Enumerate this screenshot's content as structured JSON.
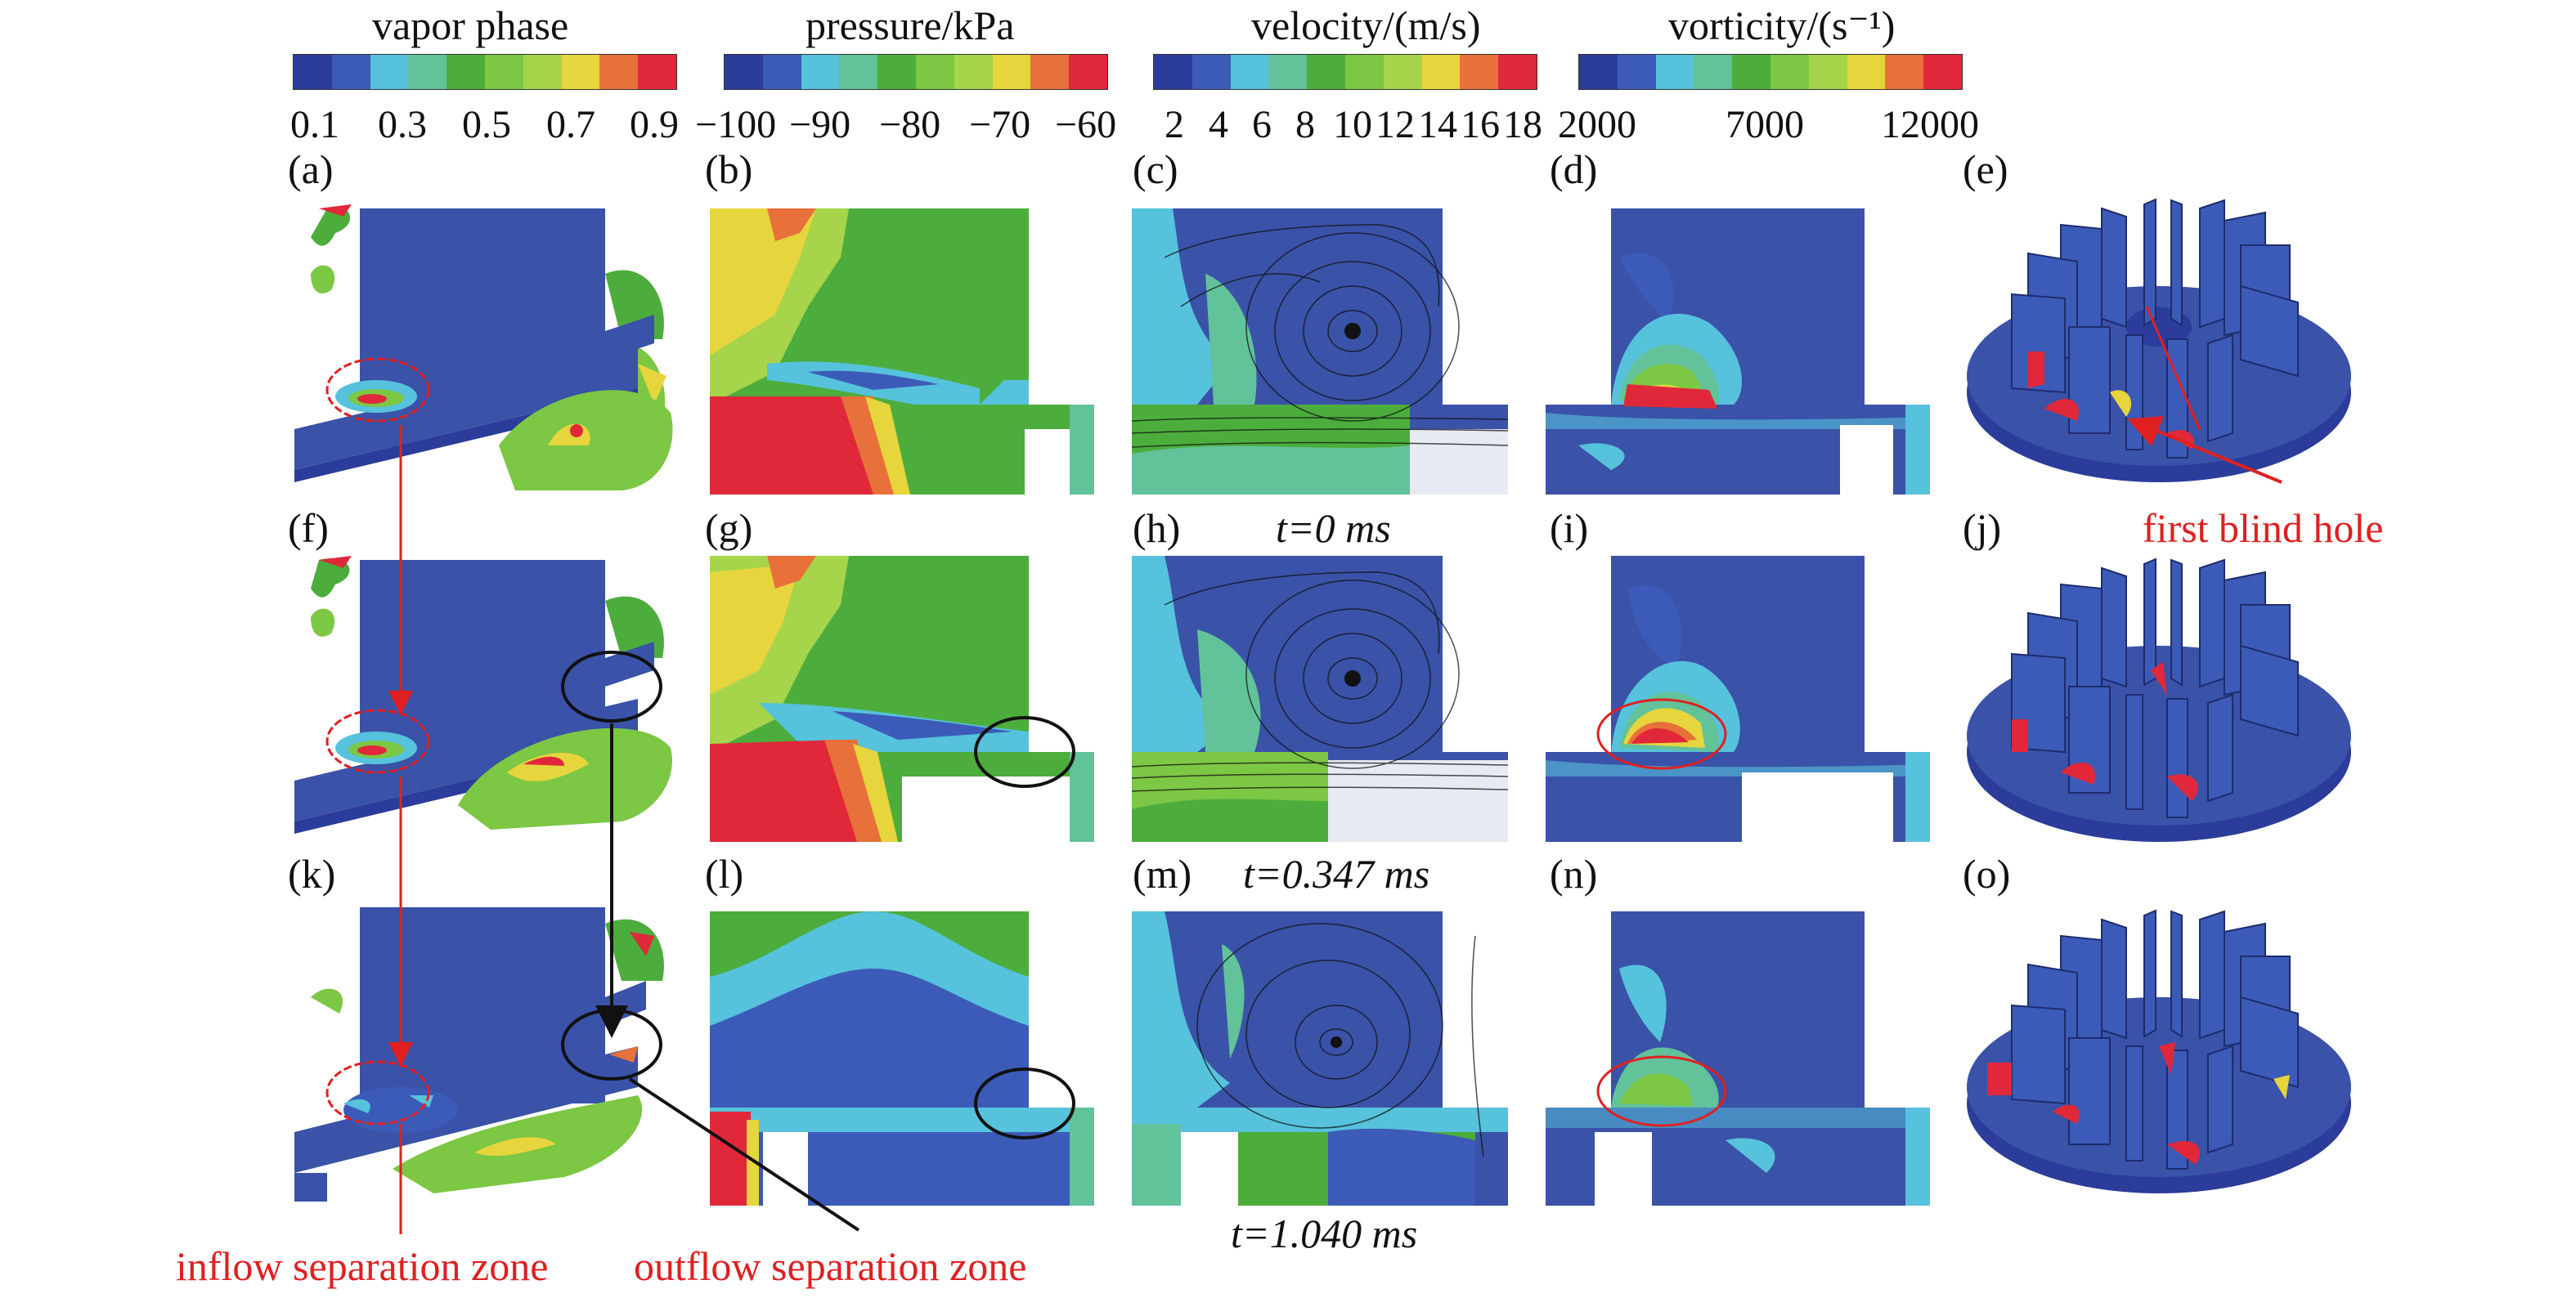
{
  "colors": {
    "scale": [
      "#2b3c9a",
      "#3c5bb8",
      "#56c2dc",
      "#62c29a",
      "#4dad3c",
      "#7cc743",
      "#a6d44a",
      "#e6d53c",
      "#e8703a",
      "#e0283a"
    ],
    "blue": "#3a52a8",
    "red_annotation": "#e02020"
  },
  "colorbars": [
    {
      "title": "vapor phase",
      "ticks": [
        "0.1",
        "0.3",
        "0.5",
        "0.7",
        "0.9"
      ]
    },
    {
      "title": "pressure/kPa",
      "ticks": [
        "−100",
        "−90",
        "−80",
        "−70",
        "−60"
      ]
    },
    {
      "title": "velocity/(m/s)",
      "ticks": [
        "2",
        "4",
        "6",
        "8",
        "10",
        "12",
        "14",
        "16",
        "18"
      ]
    },
    {
      "title": "vorticity/(s⁻¹)",
      "ticks": [
        "2000",
        "7000",
        "12000"
      ]
    }
  ],
  "panel_labels": [
    "(a)",
    "(b)",
    "(c)",
    "(d)",
    "(e)",
    "(f)",
    "(g)",
    "(h)",
    "(i)",
    "(j)",
    "(k)",
    "(l)",
    "(m)",
    "(n)",
    "(o)"
  ],
  "times": [
    "t=0 ms",
    "t=0.347 ms",
    "t=1.040 ms"
  ],
  "annotations": {
    "first_blind_hole": "first blind hole",
    "inflow": "inflow separation zone",
    "outflow": "outflow separation zone"
  }
}
